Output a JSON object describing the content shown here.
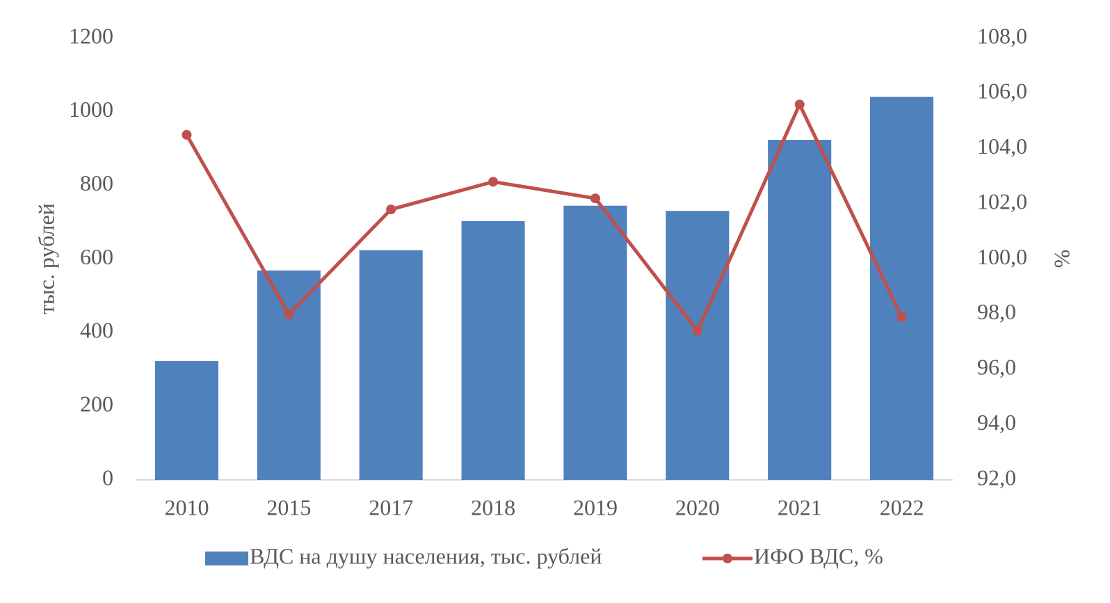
{
  "chart_data": {
    "type": "bar_line",
    "categories": [
      "2010",
      "2015",
      "2017",
      "2018",
      "2019",
      "2020",
      "2021",
      "2022"
    ],
    "series": [
      {
        "name": "ВДС на душу населения, тыс. рублей",
        "type": "bar",
        "color": "#4f81bd",
        "values": [
          323,
          569,
          624,
          703,
          745,
          731,
          924,
          1041
        ]
      },
      {
        "name": "ИФО ВДС, %",
        "type": "line",
        "axis": "y2",
        "color": "#c0504d",
        "values": [
          104.5,
          98.0,
          101.8,
          102.8,
          102.2,
          97.4,
          105.6,
          97.9
        ]
      }
    ],
    "ylabel": "тыс. рублей",
    "y2label": "%",
    "ylim": [
      0,
      1200
    ],
    "yticks": [
      0,
      200,
      400,
      600,
      800,
      1000,
      1200
    ],
    "y2lim": [
      92,
      108
    ],
    "y2ticks": [
      {
        "value": 92,
        "label": "92,0"
      },
      {
        "value": 94,
        "label": "94,0"
      },
      {
        "value": 96,
        "label": "96,0"
      },
      {
        "value": 98,
        "label": "98,0"
      },
      {
        "value": 100,
        "label": "100,0"
      },
      {
        "value": 102,
        "label": "102,0"
      },
      {
        "value": 104,
        "label": "104,0"
      },
      {
        "value": 106,
        "label": "106,0"
      },
      {
        "value": 108,
        "label": "108,0"
      }
    ],
    "legend": "bottom"
  }
}
